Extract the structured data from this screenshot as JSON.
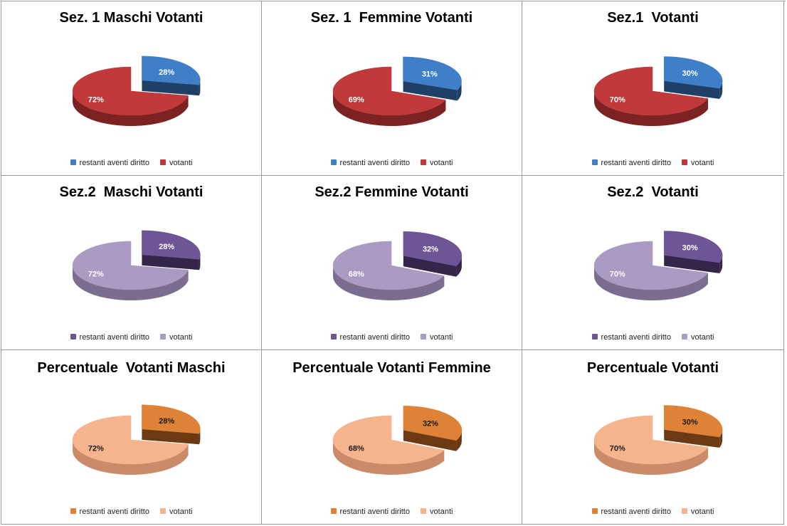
{
  "palettes": {
    "red": {
      "small_top": "#3f7fc8",
      "small_side": "#1f3f66",
      "big_top": "#c0393b",
      "big_side": "#7d2222",
      "label_color": "#ffffff"
    },
    "purple": {
      "small_top": "#6e5596",
      "small_side": "#33264a",
      "big_top": "#aa9bc3",
      "big_side": "#7a6d8f",
      "label_color": "#ffffff"
    },
    "orange": {
      "small_top": "#dd8236",
      "small_side": "#6b3a12",
      "big_top": "#f5b48e",
      "big_side": "#c98b68",
      "label_color": "#1a1a1a"
    }
  },
  "chart_data": [
    {
      "type": "pie",
      "title": "Sez. 1 Maschi Votanti",
      "palette": "red",
      "labels": [
        "restanti aventi diritto",
        "votanti"
      ],
      "values": [
        28,
        72
      ],
      "data_labels": [
        "28%",
        "72%"
      ],
      "legend": "bottom"
    },
    {
      "type": "pie",
      "title": "Sez. 1  Femmine Votanti",
      "palette": "red",
      "labels": [
        "restanti aventi diritto",
        "votanti"
      ],
      "values": [
        31,
        69
      ],
      "data_labels": [
        "31%",
        "69%"
      ],
      "legend": "bottom"
    },
    {
      "type": "pie",
      "title": "Sez.1  Votanti",
      "palette": "red",
      "labels": [
        "restanti aventi diritto",
        "votanti"
      ],
      "values": [
        30,
        70
      ],
      "data_labels": [
        "30%",
        "70%"
      ],
      "legend": "bottom"
    },
    {
      "type": "pie",
      "title": "Sez.2  Maschi Votanti",
      "palette": "purple",
      "labels": [
        "restanti aventi diritto",
        "votanti"
      ],
      "values": [
        28,
        72
      ],
      "data_labels": [
        "28%",
        "72%"
      ],
      "legend": "bottom"
    },
    {
      "type": "pie",
      "title": "Sez.2 Femmine Votanti",
      "palette": "purple",
      "labels": [
        "restanti aventi diritto",
        "votanti"
      ],
      "values": [
        32,
        68
      ],
      "data_labels": [
        "32%",
        "68%"
      ],
      "legend": "bottom"
    },
    {
      "type": "pie",
      "title": "Sez.2  Votanti",
      "palette": "purple",
      "labels": [
        "restanti aventi diritto",
        "votanti"
      ],
      "values": [
        30,
        70
      ],
      "data_labels": [
        "30%",
        "70%"
      ],
      "legend": "bottom"
    },
    {
      "type": "pie",
      "title": "Percentuale  Votanti Maschi",
      "palette": "orange",
      "labels": [
        "restanti aventi diritto",
        "votanti"
      ],
      "values": [
        28,
        72
      ],
      "data_labels": [
        "28%",
        "72%"
      ],
      "legend": "bottom"
    },
    {
      "type": "pie",
      "title": "Percentuale Votanti Femmine",
      "palette": "orange",
      "labels": [
        "restanti aventi diritto",
        "votanti"
      ],
      "values": [
        32,
        68
      ],
      "data_labels": [
        "32%",
        "68%"
      ],
      "legend": "bottom"
    },
    {
      "type": "pie",
      "title": "Percentuale Votanti",
      "palette": "orange",
      "labels": [
        "restanti aventi diritto",
        "votanti"
      ],
      "values": [
        30,
        70
      ],
      "data_labels": [
        "30%",
        "70%"
      ],
      "legend": "bottom"
    }
  ]
}
